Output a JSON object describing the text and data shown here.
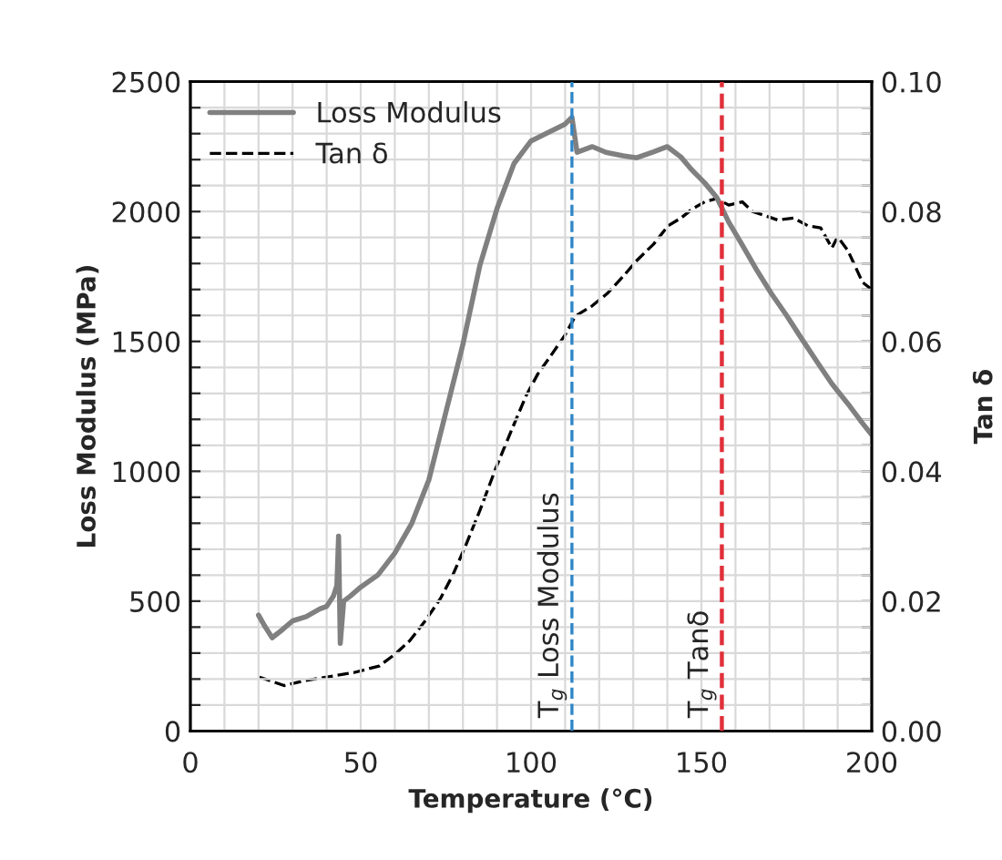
{
  "chart_data": {
    "type": "line",
    "xlabel": "Temperature (°C)",
    "ylabel": "Loss Modulus (MPa)",
    "y2label": "Tan δ",
    "xlim": [
      0,
      200
    ],
    "ylim": [
      0,
      2500
    ],
    "y2lim": [
      0,
      0.1
    ],
    "xticks": [
      0,
      {
        "value": 10,
        "label": null
      },
      {
        "value": 20,
        "label": null
      },
      {
        "value": 30,
        "label": null
      },
      {
        "value": 40,
        "label": null
      },
      50,
      {
        "value": 60,
        "label": null
      },
      {
        "value": 70,
        "label": null
      },
      {
        "value": 80,
        "label": null
      },
      {
        "value": 90,
        "label": null
      },
      100,
      {
        "value": 110,
        "label": null
      },
      {
        "value": 120,
        "label": null
      },
      {
        "value": 130,
        "label": null
      },
      {
        "value": 140,
        "label": null
      },
      150,
      {
        "value": 160,
        "label": null
      },
      {
        "value": 170,
        "label": null
      },
      {
        "value": 180,
        "label": null
      },
      {
        "value": 190,
        "label": null
      },
      200
    ],
    "yticks": [
      0,
      {
        "value": 100,
        "label": null
      },
      {
        "value": 200,
        "label": null
      },
      {
        "value": 300,
        "label": null
      },
      {
        "value": 400,
        "label": null
      },
      500,
      {
        "value": 600,
        "label": null
      },
      {
        "value": 700,
        "label": null
      },
      {
        "value": 800,
        "label": null
      },
      {
        "value": 900,
        "label": null
      },
      1000,
      {
        "value": 1100,
        "label": null
      },
      {
        "value": 1200,
        "label": null
      },
      {
        "value": 1300,
        "label": null
      },
      {
        "value": 1400,
        "label": null
      },
      1500,
      {
        "value": 1600,
        "label": null
      },
      {
        "value": 1700,
        "label": null
      },
      {
        "value": 1800,
        "label": null
      },
      {
        "value": 1900,
        "label": null
      },
      2000,
      {
        "value": 2100,
        "label": null
      },
      {
        "value": 2200,
        "label": null
      },
      {
        "value": 2300,
        "label": null
      },
      {
        "value": 2400,
        "label": null
      },
      2500
    ],
    "y2ticks": [
      {
        "value": 0,
        "label": "0.00"
      },
      {
        "value": 0.004,
        "label": null
      },
      {
        "value": 0.008,
        "label": null
      },
      {
        "value": 0.012,
        "label": null
      },
      {
        "value": 0.016,
        "label": null
      },
      {
        "value": 0.02,
        "label": "0.02"
      },
      {
        "value": 0.024,
        "label": null
      },
      {
        "value": 0.028,
        "label": null
      },
      {
        "value": 0.032,
        "label": null
      },
      {
        "value": 0.036,
        "label": null
      },
      {
        "value": 0.04,
        "label": "0.04"
      },
      {
        "value": 0.044,
        "label": null
      },
      {
        "value": 0.048,
        "label": null
      },
      {
        "value": 0.052,
        "label": null
      },
      {
        "value": 0.056,
        "label": null
      },
      {
        "value": 0.06,
        "label": "0.06"
      },
      {
        "value": 0.064,
        "label": null
      },
      {
        "value": 0.068,
        "label": null
      },
      {
        "value": 0.072,
        "label": null
      },
      {
        "value": 0.076,
        "label": null
      },
      {
        "value": 0.08,
        "label": "0.08"
      },
      {
        "value": 0.084,
        "label": null
      },
      {
        "value": 0.088,
        "label": null
      },
      {
        "value": 0.092,
        "label": null
      },
      {
        "value": 0.096,
        "label": null
      },
      {
        "value": 0.1,
        "label": "0.10"
      }
    ],
    "grid": true,
    "legend": "top left",
    "marker": "none",
    "series": [
      {
        "name": "Loss Modulus",
        "color": "#808080",
        "line_style": "solid",
        "x": [
          20,
          22,
          24,
          27,
          30,
          34,
          38,
          40,
          42,
          43,
          43.5,
          44,
          45,
          47,
          50,
          55,
          60,
          65,
          70,
          75,
          80,
          85,
          90,
          95,
          100,
          105,
          110,
          112,
          113.5,
          118,
          122,
          127,
          131,
          136,
          140,
          144,
          147,
          151,
          154.5,
          158,
          161.6,
          166,
          170.5,
          175,
          179.4,
          184,
          188.3,
          193,
          197.3,
          200
        ],
        "values": [
          446,
          400,
          359,
          390,
          424,
          440,
          470,
          480,
          520,
          560,
          750,
          337,
          500,
          520,
          554,
          600,
          685,
          800,
          967,
          1228,
          1489,
          1794,
          2011,
          2185,
          2272,
          2304,
          2337,
          2363,
          2228,
          2250,
          2228,
          2215,
          2207,
          2230,
          2250,
          2210,
          2163,
          2110,
          2054,
          1960,
          1880,
          1780,
          1685,
          1600,
          1511,
          1420,
          1337,
          1260,
          1185,
          1140
        ]
      },
      {
        "name": "Tan δ",
        "color": "#000000",
        "axis": "y2",
        "line_style": "dashed",
        "x": [
          20.3,
          27.5,
          34,
          41,
          48,
          55.4,
          60,
          64.4,
          69,
          73.4,
          77,
          80.6,
          85,
          89.6,
          94,
          98.6,
          102,
          105.8,
          110,
          113,
          118,
          122.4,
          127,
          131.3,
          136,
          140.2,
          144,
          147.3,
          151,
          154.5,
          158,
          162,
          165,
          168,
          172.4,
          177,
          181.3,
          185,
          188.3,
          190,
          193,
          197.3,
          200
        ],
        "values": [
          0.0083,
          0.007,
          0.0078,
          0.0084,
          0.009,
          0.01,
          0.0118,
          0.0139,
          0.017,
          0.0204,
          0.024,
          0.0283,
          0.034,
          0.0404,
          0.046,
          0.0517,
          0.055,
          0.0578,
          0.061,
          0.0639,
          0.0655,
          0.0674,
          0.07,
          0.0726,
          0.075,
          0.0778,
          0.079,
          0.0804,
          0.0815,
          0.082,
          0.081,
          0.0815,
          0.08,
          0.0795,
          0.0787,
          0.079,
          0.0778,
          0.0775,
          0.0744,
          0.0761,
          0.074,
          0.0691,
          0.068
        ]
      }
    ],
    "ref_lines": [
      {
        "axis": "x",
        "value": 112,
        "label": "T$_{g}$ Loss Modulus",
        "color": "#2e86c8",
        "line_style": "dashed"
      },
      {
        "axis": "x",
        "value": 156,
        "label": "T$_{g}$ Tanδ",
        "color": "#e0303a",
        "line_style": "dashed"
      }
    ]
  }
}
